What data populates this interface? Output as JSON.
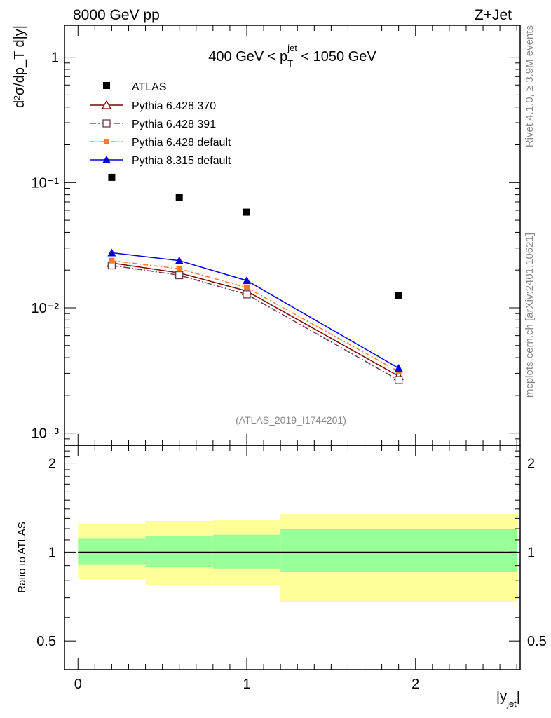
{
  "header": {
    "left": "8000 GeV pp",
    "right": "Z+Jet",
    "side_top": "Rivet 4.1.0, ≥ 3.9M events",
    "side_bottom": "mcplots.cern.ch [arXiv:2401.10621]"
  },
  "chart_data": [
    {
      "type": "scatter",
      "panel": "main",
      "title": "400 GeV < p_T^jet < 1050 GeV",
      "title_parts": {
        "pre": "400 GeV < p",
        "sup": "jet",
        "sub": "T",
        "post": " < 1050 GeV"
      },
      "ylabel": "d²σ/dp_T d|y|",
      "yscale": "log",
      "ylim": [
        0.0008,
        1.8
      ],
      "xlim": [
        -0.08,
        2.62
      ],
      "ytick_labels": [
        "10⁻³",
        "10⁻²",
        "10⁻¹",
        "1"
      ],
      "yticks": [
        0.001,
        0.01,
        0.1,
        1
      ],
      "x": [
        0.2,
        0.6,
        1.0,
        1.9
      ],
      "reference": {
        "name": "ATLAS",
        "values": [
          0.11,
          0.076,
          0.058,
          0.0125
        ]
      },
      "series": [
        {
          "name": "Pythia 6.428 370",
          "color": "#800000",
          "marker": "open-triangle",
          "dash": "solid",
          "values": [
            0.0228,
            0.019,
            0.0136,
            0.00285
          ]
        },
        {
          "name": "Pythia 6.428 391",
          "color": "#6b3a4a",
          "marker": "open-square",
          "dash": "dashdot",
          "values": [
            0.0218,
            0.0182,
            0.0128,
            0.00265
          ]
        },
        {
          "name": "Pythia 6.428 default",
          "color": "#f47b30",
          "marker": "filled-square",
          "dash": "dashed",
          "values": [
            0.0238,
            0.0205,
            0.0145,
            0.0031
          ]
        },
        {
          "name": "Pythia 8.315 default",
          "color": "#0000dd",
          "marker": "filled-triangle",
          "dash": "solid",
          "values": [
            0.0275,
            0.0238,
            0.0165,
            0.0033
          ]
        }
      ],
      "watermark": "(ATLAS_2019_I1744201)"
    },
    {
      "type": "area",
      "panel": "ratio",
      "ylabel": "Ratio to ATLAS",
      "xlabel": "|y_jet|",
      "xlabel_parts": {
        "pre": "|y",
        "sub": "jet",
        "post": "|"
      },
      "ylim": [
        0.4,
        2.3
      ],
      "xlim": [
        -0.08,
        2.62
      ],
      "ytick_labels": [
        "0.5",
        "1",
        "2"
      ],
      "yticks": [
        0.5,
        1,
        2
      ],
      "xtick_labels": [
        "0",
        "1",
        "2"
      ],
      "xticks": [
        0,
        1,
        2
      ],
      "bins": [
        [
          0.0,
          0.4
        ],
        [
          0.4,
          0.8
        ],
        [
          0.8,
          1.2
        ],
        [
          1.2,
          2.6
        ]
      ],
      "stat_band": {
        "color": "#99ff99",
        "low": [
          0.905,
          0.89,
          0.88,
          0.855
        ],
        "high": [
          1.115,
          1.13,
          1.145,
          1.2
        ]
      },
      "total_band": {
        "color": "#ffff99",
        "low": [
          0.81,
          0.77,
          0.77,
          0.68
        ],
        "high": [
          1.245,
          1.275,
          1.285,
          1.345
        ]
      },
      "reference_line": 1
    }
  ]
}
